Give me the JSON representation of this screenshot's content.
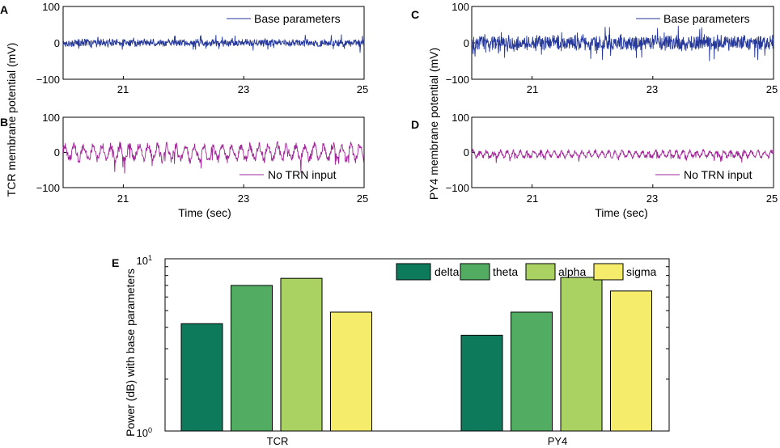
{
  "chart_data": [
    {
      "panel": "A",
      "type": "line",
      "ylabel": "TCR membrane potential (mV)",
      "xlabel": "",
      "xlim": [
        20,
        25
      ],
      "ylim": [
        -100,
        100
      ],
      "xticks": [
        "21",
        "23",
        "25"
      ],
      "yticks": [
        "100",
        "0",
        "−100"
      ],
      "legend": "Base parameters",
      "legend_position": "top-right",
      "color": "#26399a",
      "series": [
        {
          "name": "Base parameters",
          "amplitude_mV": 12,
          "mean_mV": 0
        }
      ]
    },
    {
      "panel": "B",
      "type": "line",
      "ylabel": "",
      "xlabel": "Time (sec)",
      "xlim": [
        20,
        25
      ],
      "ylim": [
        -100,
        100
      ],
      "xticks": [
        "21",
        "23",
        "25"
      ],
      "yticks": [
        "100",
        "0",
        "−100"
      ],
      "legend": "No TRN input",
      "legend_position": "bottom-right",
      "color": "#a2269a",
      "series": [
        {
          "name": "No TRN input",
          "amplitude_mV": 35,
          "mean_mV": 0
        }
      ]
    },
    {
      "panel": "C",
      "type": "line",
      "ylabel": "PY4 membrane potential (mV)",
      "xlabel": "",
      "xlim": [
        20,
        25
      ],
      "ylim": [
        -100,
        100
      ],
      "xticks": [
        "21",
        "23",
        "25"
      ],
      "yticks": [
        "100",
        "0",
        "−100"
      ],
      "legend": "Base parameters",
      "legend_position": "top-right",
      "color": "#26399a",
      "series": [
        {
          "name": "Base parameters",
          "amplitude_mV": 25,
          "mean_mV": 0
        }
      ]
    },
    {
      "panel": "D",
      "type": "line",
      "ylabel": "",
      "xlabel": "Time (sec)",
      "xlim": [
        20,
        25
      ],
      "ylim": [
        -100,
        100
      ],
      "xticks": [
        "21",
        "23",
        "25"
      ],
      "yticks": [
        "100",
        "0",
        "−100"
      ],
      "legend": "No TRN input",
      "legend_position": "bottom-right",
      "color": "#a2269a",
      "series": [
        {
          "name": "No TRN input",
          "amplitude_mV": 15,
          "mean_mV": -5
        }
      ]
    },
    {
      "panel": "E",
      "type": "bar",
      "yscale": "log",
      "ylabel": "Power (dB) with base parameters",
      "xlabel": "",
      "ylim": [
        1,
        10
      ],
      "ytick_base": "10",
      "ytick_exps": [
        "0",
        "1"
      ],
      "categories": [
        "TCR",
        "PY4"
      ],
      "legend_position": "top-right",
      "series": [
        {
          "name": "delta",
          "color": "#0e7a5c",
          "values": [
            4.2,
            3.6
          ]
        },
        {
          "name": "theta",
          "color": "#52ad62",
          "values": [
            7.0,
            4.9
          ]
        },
        {
          "name": "alpha",
          "color": "#a9d263",
          "values": [
            7.7,
            7.8
          ]
        },
        {
          "name": "sigma",
          "color": "#f4ec6a",
          "values": [
            4.9,
            6.5
          ]
        }
      ]
    }
  ]
}
